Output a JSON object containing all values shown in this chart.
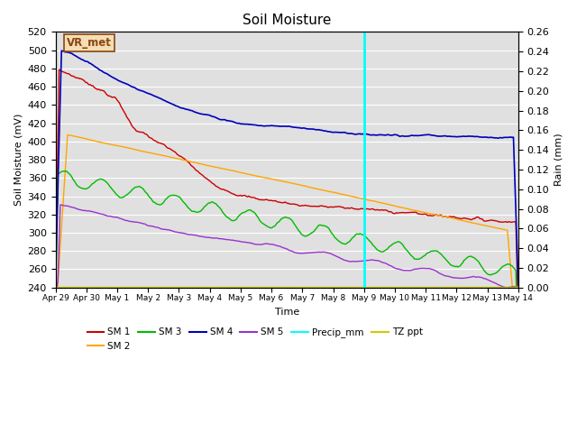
{
  "title": "Soil Moisture",
  "ylabel_left": "Soil Moisture (mV)",
  "ylabel_right": "Rain (mm)",
  "xlabel": "Time",
  "ylim_left": [
    240,
    520
  ],
  "ylim_right": [
    0.0,
    0.26
  ],
  "yticks_left": [
    240,
    260,
    280,
    300,
    320,
    340,
    360,
    380,
    400,
    420,
    440,
    460,
    480,
    500,
    520
  ],
  "yticks_right": [
    0.0,
    0.02,
    0.04,
    0.06,
    0.08,
    0.1,
    0.12,
    0.14,
    0.16,
    0.18,
    0.2,
    0.22,
    0.24,
    0.26
  ],
  "vline_color": "#00FFFF",
  "vline_day": 10.0,
  "background_color": "#E0E0E0",
  "station_label": "VR_met",
  "station_label_color": "#8B4513",
  "station_label_bg": "#F5DEB3",
  "colors": {
    "SM1": "#CC0000",
    "SM2": "#FFA500",
    "SM3": "#00BB00",
    "SM4": "#0000BB",
    "SM5": "#9933CC",
    "Precip": "#00FFFF",
    "TZ": "#CCCC00"
  },
  "tick_labels": [
    "Apr 29",
    "Apr 30",
    "May 1",
    "May 2",
    "May 3",
    "May 4",
    "May 5",
    "May 6",
    "May 7",
    "May 8",
    "May 9",
    "May 10",
    "May 11",
    "May 12",
    "May 13",
    "May 14"
  ],
  "xlim": [
    0,
    15
  ]
}
